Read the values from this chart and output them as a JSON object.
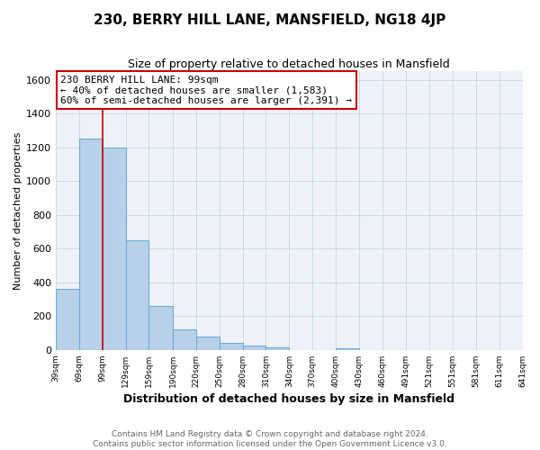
{
  "title_line1": "230, BERRY HILL LANE, MANSFIELD, NG18 4JP",
  "title_line2": "Size of property relative to detached houses in Mansfield",
  "xlabel": "Distribution of detached houses by size in Mansfield",
  "ylabel": "Number of detached properties",
  "bar_edges": [
    39,
    69,
    99,
    129,
    159,
    190,
    220,
    250,
    280,
    310,
    340,
    370,
    400,
    430,
    460,
    491,
    521,
    551,
    581,
    611,
    641
  ],
  "bar_heights": [
    360,
    1250,
    1200,
    650,
    260,
    120,
    80,
    40,
    25,
    15,
    0,
    0,
    10,
    0,
    0,
    0,
    0,
    0,
    0,
    0
  ],
  "bar_color": "#b8d0e8",
  "bar_edge_color": "#6baed6",
  "bar_linewidth": 0.8,
  "red_line_x": 99,
  "annotation_text_line1": "230 BERRY HILL LANE: 99sqm",
  "annotation_text_line2": "← 40% of detached houses are smaller (1,583)",
  "annotation_text_line3": "60% of semi-detached houses are larger (2,391) →",
  "annotation_box_color": "#ffffff",
  "annotation_box_edge_color": "#cc0000",
  "ylim": [
    0,
    1650
  ],
  "yticks": [
    0,
    200,
    400,
    600,
    800,
    1000,
    1200,
    1400,
    1600
  ],
  "tick_labels": [
    "39sqm",
    "69sqm",
    "99sqm",
    "129sqm",
    "159sqm",
    "190sqm",
    "220sqm",
    "250sqm",
    "280sqm",
    "310sqm",
    "340sqm",
    "370sqm",
    "400sqm",
    "430sqm",
    "460sqm",
    "491sqm",
    "521sqm",
    "551sqm",
    "581sqm",
    "611sqm",
    "641sqm"
  ],
  "grid_color": "#ccd9e8",
  "background_color": "#eef2f8",
  "footer_line1": "Contains HM Land Registry data © Crown copyright and database right 2024.",
  "footer_line2": "Contains public sector information licensed under the Open Government Licence v3.0."
}
